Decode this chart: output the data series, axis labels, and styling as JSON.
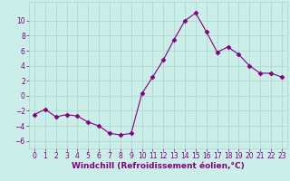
{
  "x": [
    0,
    1,
    2,
    3,
    4,
    5,
    6,
    7,
    8,
    9,
    10,
    11,
    12,
    13,
    14,
    15,
    16,
    17,
    18,
    19,
    20,
    21,
    22,
    23
  ],
  "y": [
    -2.5,
    -1.8,
    -2.8,
    -2.5,
    -2.7,
    -3.5,
    -4.0,
    -5.0,
    -5.2,
    -5.0,
    0.3,
    2.5,
    4.8,
    7.5,
    10.0,
    11.0,
    8.5,
    5.8,
    6.5,
    5.5,
    4.0,
    3.0,
    3.0,
    2.5
  ],
  "line_color": "#800080",
  "marker": "D",
  "marker_size": 2.5,
  "bg_color": "#cceee8",
  "grid_color": "#aad4cc",
  "xlabel": "Windchill (Refroidissement éolien,°C)",
  "xlim": [
    -0.5,
    23.5
  ],
  "ylim": [
    -7,
    12.5
  ],
  "yticks": [
    -6,
    -4,
    -2,
    0,
    2,
    4,
    6,
    8,
    10
  ],
  "xticks": [
    0,
    1,
    2,
    3,
    4,
    5,
    6,
    7,
    8,
    9,
    10,
    11,
    12,
    13,
    14,
    15,
    16,
    17,
    18,
    19,
    20,
    21,
    22,
    23
  ],
  "tick_fontsize": 5.5,
  "xlabel_fontsize": 6.5
}
